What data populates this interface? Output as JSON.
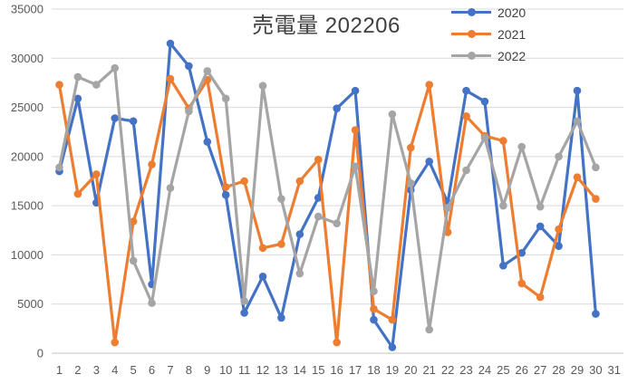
{
  "chart_data": {
    "type": "line",
    "title": "売電量 202206",
    "title_color": "#404040",
    "x_categories": [
      1,
      2,
      3,
      4,
      5,
      6,
      7,
      8,
      9,
      10,
      11,
      12,
      13,
      14,
      15,
      16,
      17,
      18,
      19,
      20,
      21,
      22,
      23,
      24,
      25,
      26,
      27,
      28,
      29,
      30,
      31
    ],
    "xlabel": "",
    "ylabel": "",
    "ylim": [
      0,
      35000
    ],
    "ytick_step": 5000,
    "ytick_labels": [
      "0",
      "5000",
      "10000",
      "15000",
      "20000",
      "25000",
      "30000",
      "35000"
    ],
    "grid": true,
    "gridline_color": "#D9D9D9",
    "axis_line_color": "#C6C6C6",
    "axis_label_color": "#595959",
    "legend_position": "top-right",
    "series": [
      {
        "name": "2020",
        "color": "#4472C4",
        "values": [
          18500,
          25900,
          15300,
          23900,
          23600,
          7000,
          31500,
          29200,
          21500,
          16100,
          4100,
          7800,
          3600,
          12100,
          15800,
          24900,
          26700,
          3400,
          600,
          16600,
          19500,
          15300,
          26700,
          25600,
          8900,
          10200,
          12900,
          10900,
          26700,
          4000
        ]
      },
      {
        "name": "2021",
        "color": "#ED7D31",
        "values": [
          27300,
          16200,
          18200,
          1100,
          13400,
          19200,
          27900,
          24900,
          27800,
          16900,
          17500,
          10700,
          11100,
          17500,
          19700,
          1100,
          22700,
          4500,
          3400,
          20900,
          27300,
          12300,
          24100,
          22100,
          21600,
          7100,
          5700,
          12600,
          17900,
          15700
        ]
      },
      {
        "name": "2022",
        "color": "#A5A5A5",
        "values": [
          18900,
          28100,
          27300,
          29000,
          9400,
          5100,
          16800,
          24600,
          28700,
          25900,
          5300,
          27200,
          15700,
          8100,
          13900,
          13200,
          19000,
          6300,
          24300,
          17300,
          2400,
          14800,
          18600,
          21900,
          15000,
          21000,
          14900,
          20000,
          23600,
          18900
        ]
      }
    ]
  }
}
